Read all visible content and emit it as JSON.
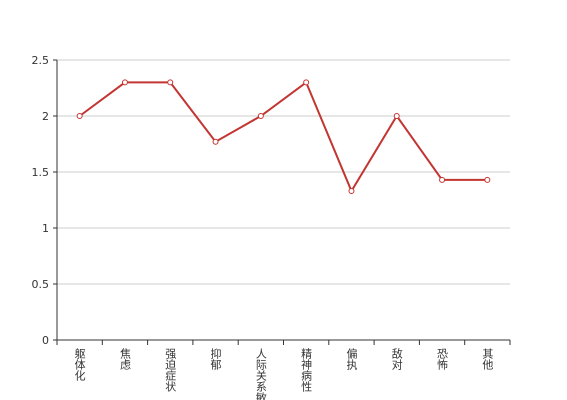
{
  "chart_data": {
    "type": "line",
    "categories": [
      "躯体化",
      "焦虑",
      "强迫症状",
      "抑郁",
      "人际关系敏感",
      "精神病性",
      "偏执",
      "敌对",
      "恐怖",
      "其他"
    ],
    "series": [
      {
        "color": "#c23531",
        "values": [
          2,
          2.3,
          2.3,
          1.77,
          2,
          2.3,
          1.33,
          2,
          1.43,
          1.43
        ]
      }
    ],
    "ylim": [
      0,
      2.5
    ],
    "yticks": [
      0,
      0.5,
      1,
      1.5,
      2,
      2.5
    ],
    "grid": true
  }
}
